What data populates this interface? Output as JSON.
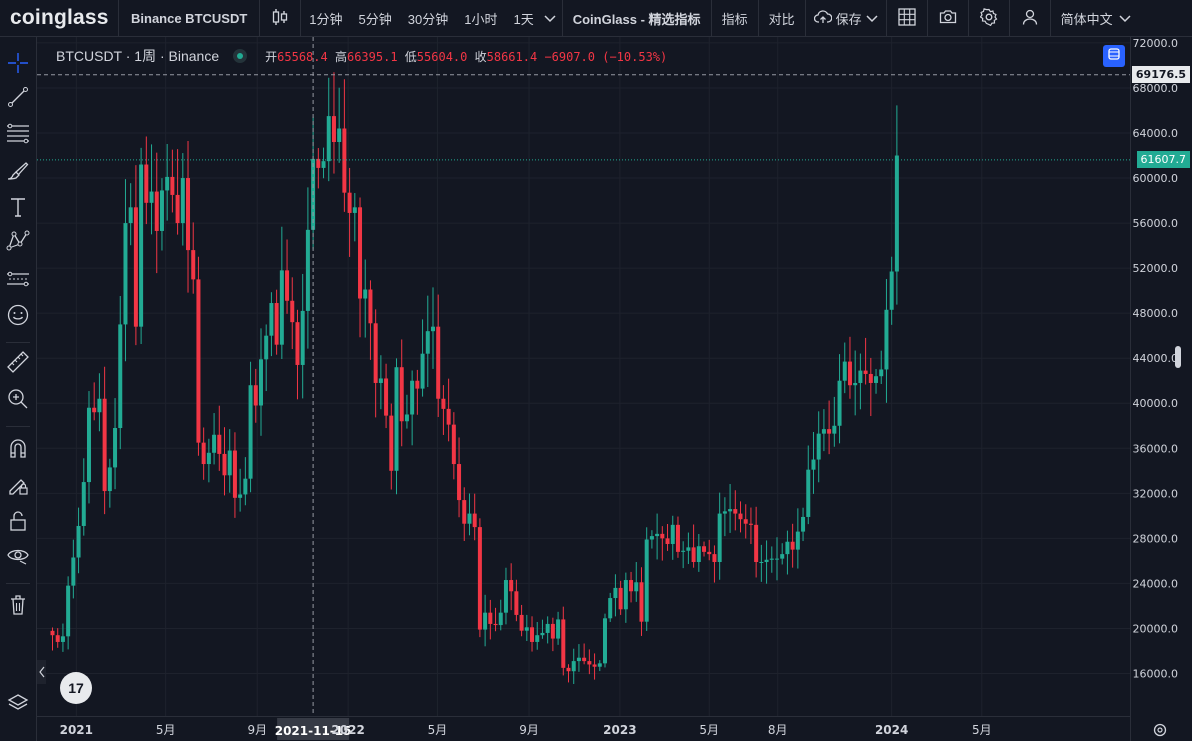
{
  "topbar": {
    "logo": "coinglass",
    "symbol": "Binance BTCUSDT",
    "intervals": [
      "1分钟",
      "5分钟",
      "30分钟",
      "1小时",
      "1天"
    ],
    "indicators_pick": "CoinGlass - 精选指标",
    "indicators": "指标",
    "compare": "对比",
    "save": "保存",
    "language": "简体中文"
  },
  "legend": {
    "title": "BTCUSDT · 1周 · Binance",
    "open_label": "开",
    "open": "65568.4",
    "high_label": "高",
    "high": "66395.1",
    "low_label": "低",
    "low": "55604.0",
    "close_label": "收",
    "close": "58661.4",
    "change": "−6907.0 (−10.53%)"
  },
  "crosshair": {
    "price": "69176.5",
    "date": "2021-11-15"
  },
  "last_price": "61607.7",
  "colors": {
    "up": "#22ab94",
    "down": "#f23645",
    "bg": "#131722",
    "grid": "#1e222d",
    "accent": "#2962ff"
  },
  "tools": [
    "crosshair-icon",
    "trend-line-icon",
    "fib-icon",
    "brush-icon",
    "text-icon",
    "pattern-icon",
    "forecast-icon",
    "emoji-icon",
    "ruler-icon",
    "zoom-icon",
    "magnet-icon",
    "lock-drawing-icon",
    "lock-icon",
    "eye-icon",
    "trash-icon",
    "layers-icon"
  ],
  "tv_logo": "17",
  "chart_data": {
    "type": "candlestick",
    "interval": "1W",
    "y_axis_ticks": [
      72000,
      68000,
      64000,
      60000,
      56000,
      52000,
      48000,
      44000,
      40000,
      36000,
      32000,
      28000,
      24000,
      20000,
      16000
    ],
    "x_axis_labels": [
      "2021",
      "5月",
      "9月",
      "2022",
      "5月",
      "9月",
      "2023",
      "5月",
      "8月",
      "2024",
      "5月"
    ],
    "start_week": "2020-11-30",
    "closes": [
      19400,
      18800,
      19300,
      23800,
      26300,
      29100,
      33000,
      39600,
      39200,
      40400,
      32200,
      34300,
      37800,
      47000,
      56000,
      57400,
      46800,
      61200,
      57800,
      58800,
      55300,
      58900,
      60100,
      58500,
      56000,
      60000,
      53600,
      51000,
      36500,
      34600,
      35600,
      37200,
      35500,
      33600,
      35800,
      31600,
      31900,
      33300,
      41600,
      39800,
      43900,
      46000,
      48900,
      45200,
      51800,
      49100,
      47200,
      43400,
      48200,
      55400,
      61700,
      60900,
      61500,
      65500,
      63200,
      64400,
      58700,
      56900,
      57400,
      49300,
      50100,
      47100,
      41800,
      42200,
      38900,
      34000,
      43200,
      38400,
      39000,
      42000,
      41300,
      44400,
      46400,
      46800,
      40400,
      39500,
      38100,
      34600,
      31400,
      29300,
      30200,
      29000,
      19900,
      21400,
      20400,
      20300,
      21400,
      24300,
      23300,
      21200,
      19800,
      20100,
      18800,
      19400,
      19600,
      20400,
      19100,
      20800,
      16500,
      16200,
      17100,
      17400,
      17100,
      16800,
      16600,
      16900,
      20900,
      22700,
      23600,
      21700,
      24300,
      23300,
      24100,
      20600,
      27900,
      28200,
      28400,
      28000,
      27500,
      29200,
      26800,
      26900,
      27200,
      25900,
      27300,
      26800,
      26600,
      25900,
      30200,
      30400,
      30600,
      30200,
      29700,
      29300,
      29200,
      25900,
      25900,
      26100,
      26200,
      26200,
      26600,
      27700,
      27000,
      28600,
      29900,
      34100,
      35000,
      37300,
      37700,
      37300,
      38000,
      42000,
      43700,
      41600,
      41800,
      42900,
      42600,
      41800,
      42400,
      43000,
      48300,
      51700,
      62000
    ],
    "crosshair_date": "2021-11-15",
    "crosshair_price": 69176.5,
    "last_price": 61607.7
  }
}
